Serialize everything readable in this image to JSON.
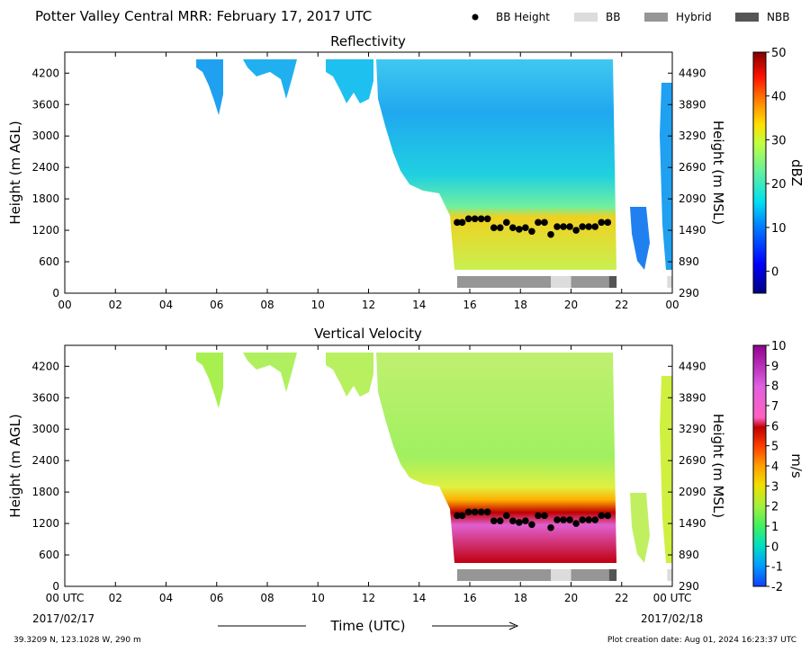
{
  "header": {
    "title": "Potter Valley Central MRR:  February 17, 2017 UTC",
    "legend": [
      {
        "label": "BB Height",
        "kind": "dot",
        "color": "#000000"
      },
      {
        "label": "BB",
        "kind": "swatch",
        "color": "#dcdcdc"
      },
      {
        "label": "Hybrid",
        "kind": "swatch",
        "color": "#969696"
      },
      {
        "label": "NBB",
        "kind": "swatch",
        "color": "#555555"
      }
    ]
  },
  "footer": {
    "location": "39.3209 N, 123.1028 W, 290 m",
    "created": "Plot creation date: Aug 01, 2024 16:23:37 UTC",
    "xaxis_title": "Time (UTC)",
    "start_date": "2017/02/17",
    "end_date": "2017/02/18"
  },
  "chart_data": [
    {
      "type": "heatmap",
      "title": "Reflectivity",
      "ylabel": "Height (m AGL)",
      "ylabel_right": "Height (m MSL)",
      "colorbar_label": "dBZ",
      "x_ticks": [
        "00",
        "02",
        "04",
        "06",
        "08",
        "10",
        "12",
        "14",
        "16",
        "18",
        "20",
        "22",
        "00"
      ],
      "xlim": [
        0,
        24
      ],
      "ylim": [
        0,
        4600
      ],
      "y_ticks": [
        0,
        600,
        1200,
        1800,
        2400,
        3000,
        3600,
        4200
      ],
      "y_ticks_right": [
        290,
        890,
        1490,
        2090,
        2690,
        3290,
        3890,
        4490
      ],
      "colorbar_ticks": [
        0,
        10,
        20,
        30,
        40,
        50
      ],
      "colorbar_range": [
        -5,
        50
      ],
      "bb_height": {
        "x": [
          15.5,
          15.7,
          15.95,
          16.2,
          16.45,
          16.7,
          16.95,
          17.2,
          17.45,
          17.7,
          17.95,
          18.2,
          18.45,
          18.7,
          18.95,
          19.2,
          19.45,
          19.7,
          19.95,
          20.2,
          20.45,
          20.7,
          20.95,
          21.2,
          21.45
        ],
        "y": [
          1350,
          1350,
          1420,
          1420,
          1420,
          1420,
          1250,
          1250,
          1350,
          1250,
          1220,
          1250,
          1180,
          1350,
          1350,
          1120,
          1270,
          1270,
          1270,
          1200,
          1270,
          1270,
          1270,
          1350,
          1350
        ]
      },
      "bb_type": [
        {
          "start": 15.5,
          "end": 19.2,
          "type": "Hybrid"
        },
        {
          "start": 19.2,
          "end": 20.0,
          "type": "BB"
        },
        {
          "start": 20.0,
          "end": 21.5,
          "type": "Hybrid"
        },
        {
          "start": 21.5,
          "end": 21.8,
          "type": "NBB"
        },
        {
          "start": 23.8,
          "end": 24.0,
          "type": "BB"
        }
      ]
    },
    {
      "type": "heatmap",
      "title": "Vertical Velocity",
      "ylabel": "Height (m AGL)",
      "ylabel_right": "Height (m MSL)",
      "colorbar_label": "m/s",
      "x_ticks": [
        "00 UTC",
        "02",
        "04",
        "06",
        "08",
        "10",
        "12",
        "14",
        "16",
        "18",
        "20",
        "22",
        "00 UTC"
      ],
      "xlim": [
        0,
        24
      ],
      "ylim": [
        0,
        4600
      ],
      "y_ticks": [
        0,
        600,
        1200,
        1800,
        2400,
        3000,
        3600,
        4200
      ],
      "y_ticks_right": [
        290,
        890,
        1490,
        2090,
        2690,
        3290,
        3890,
        4490
      ],
      "colorbar_ticks": [
        -2,
        -1,
        0,
        1,
        2,
        3,
        4,
        5,
        6,
        7,
        8,
        9,
        10
      ],
      "colorbar_range": [
        -2,
        10
      ],
      "bb_height": {
        "x": [
          15.5,
          15.7,
          15.95,
          16.2,
          16.45,
          16.7,
          16.95,
          17.2,
          17.45,
          17.7,
          17.95,
          18.2,
          18.45,
          18.7,
          18.95,
          19.2,
          19.45,
          19.7,
          19.95,
          20.2,
          20.45,
          20.7,
          20.95,
          21.2,
          21.45
        ],
        "y": [
          1350,
          1350,
          1420,
          1420,
          1420,
          1420,
          1250,
          1250,
          1350,
          1250,
          1220,
          1250,
          1180,
          1350,
          1350,
          1120,
          1270,
          1270,
          1270,
          1200,
          1270,
          1270,
          1270,
          1350,
          1350
        ]
      },
      "bb_type": [
        {
          "start": 15.5,
          "end": 19.2,
          "type": "Hybrid"
        },
        {
          "start": 19.2,
          "end": 20.0,
          "type": "BB"
        },
        {
          "start": 20.0,
          "end": 21.5,
          "type": "Hybrid"
        },
        {
          "start": 21.5,
          "end": 21.8,
          "type": "NBB"
        },
        {
          "start": 23.8,
          "end": 24.0,
          "type": "BB"
        }
      ]
    }
  ]
}
